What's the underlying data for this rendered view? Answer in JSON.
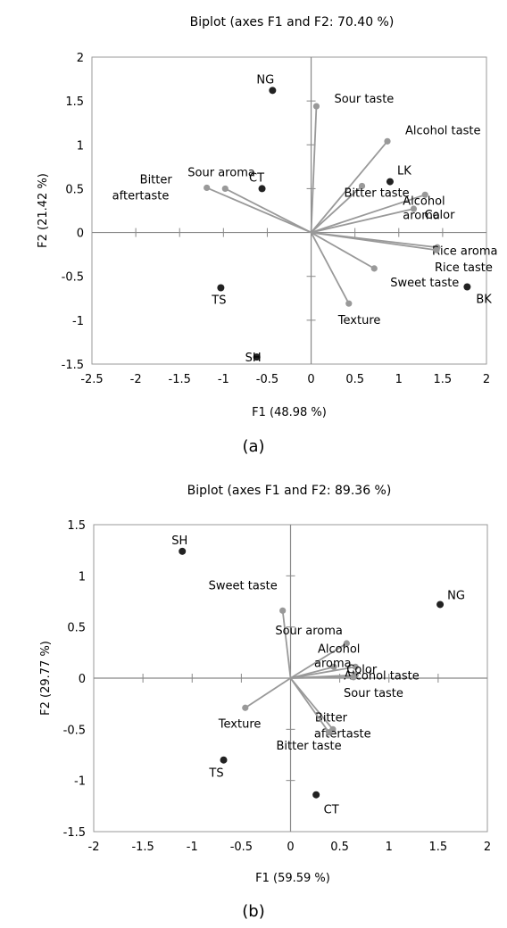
{
  "figure": {
    "caption_a": "(a)",
    "caption_b": "(b)"
  },
  "chart_data": [
    {
      "type": "scatter",
      "title": "Biplot (axes F1 and F2: 70.40 %)",
      "xlabel": "F1 (48.98 %)",
      "ylabel": "F2 (21.42 %)",
      "xlim": [
        -2.5,
        2
      ],
      "ylim": [
        -1.5,
        2
      ],
      "xticks": [
        "-2.5",
        "-2",
        "-1.5",
        "-1",
        "-0.5",
        "0",
        "0.5",
        "1",
        "1.5",
        "2"
      ],
      "yticks": [
        "-1.5",
        "-1",
        "-0.5",
        "0",
        "0.5",
        "1",
        "1.5",
        "2"
      ],
      "grid": false,
      "colors": {
        "observation": "#222222",
        "variable": "#999999",
        "axis": "#888888"
      },
      "observations": [
        {
          "label": "NG",
          "x": -0.44,
          "y": 1.62
        },
        {
          "label": "CT",
          "x": -0.56,
          "y": 0.5
        },
        {
          "label": "LK",
          "x": 0.9,
          "y": 0.58
        },
        {
          "label": "TS",
          "x": -1.03,
          "y": -0.63
        },
        {
          "label": "BK",
          "x": 1.78,
          "y": -0.62
        },
        {
          "label": "SH",
          "x": -0.62,
          "y": -1.42
        }
      ],
      "variables": [
        {
          "label": "Sour taste",
          "x": 0.06,
          "y": 1.44
        },
        {
          "label": "Alcohol taste",
          "x": 0.87,
          "y": 1.04
        },
        {
          "label": "Bitter taste",
          "x": 0.58,
          "y": 0.53
        },
        {
          "label": "Color",
          "x": 1.17,
          "y": 0.27
        },
        {
          "label": "Rice aroma",
          "x": 1.44,
          "y": -0.17
        },
        {
          "label": "Alcohol aroma",
          "x": 1.3,
          "y": 0.43
        },
        {
          "label": "Rice taste",
          "x": 1.43,
          "y": -0.2
        },
        {
          "label": "Sweet taste",
          "x": 0.72,
          "y": -0.41
        },
        {
          "label": "Texture",
          "x": 0.43,
          "y": -0.81
        },
        {
          "label": "Sour aroma",
          "x": -0.98,
          "y": 0.5
        },
        {
          "label": "Bitter aftertaste",
          "x": -1.19,
          "y": 0.51
        }
      ]
    },
    {
      "type": "scatter",
      "title": "Biplot (axes F1 and F2: 89.36 %)",
      "xlabel": "F1 (59.59 %)",
      "ylabel": "F2 (29.77 %)",
      "xlim": [
        -2,
        2
      ],
      "ylim": [
        -1.5,
        1.5
      ],
      "xticks": [
        "-2",
        "-1.5",
        "-1",
        "-0.5",
        "0",
        "0.5",
        "1",
        "1.5",
        "2"
      ],
      "yticks": [
        "-1.5",
        "-1",
        "-0.5",
        "0",
        "0.5",
        "1",
        "1.5"
      ],
      "grid": false,
      "colors": {
        "observation": "#222222",
        "variable": "#999999",
        "axis": "#888888"
      },
      "observations": [
        {
          "label": "SH",
          "x": -1.1,
          "y": 1.24
        },
        {
          "label": "NG",
          "x": 1.52,
          "y": 0.72
        },
        {
          "label": "TS",
          "x": -0.68,
          "y": -0.8
        },
        {
          "label": "CT",
          "x": 0.26,
          "y": -1.14
        }
      ],
      "variables": [
        {
          "label": "Sweet taste",
          "x": -0.08,
          "y": 0.66
        },
        {
          "label": "Sour aroma",
          "x": 0.57,
          "y": 0.34
        },
        {
          "label": "Alcohol aroma",
          "x": 0.44,
          "y": 0.11
        },
        {
          "label": "Color",
          "x": 0.66,
          "y": 0.11
        },
        {
          "label": "Alcohol taste",
          "x": 0.66,
          "y": 0.03
        },
        {
          "label": "Sour taste",
          "x": 0.64,
          "y": 0.01
        },
        {
          "label": "Bitter aftertaste",
          "x": 0.43,
          "y": -0.5
        },
        {
          "label": "Bitter taste",
          "x": 0.39,
          "y": -0.53
        },
        {
          "label": "Texture",
          "x": -0.46,
          "y": -0.29
        }
      ]
    }
  ]
}
